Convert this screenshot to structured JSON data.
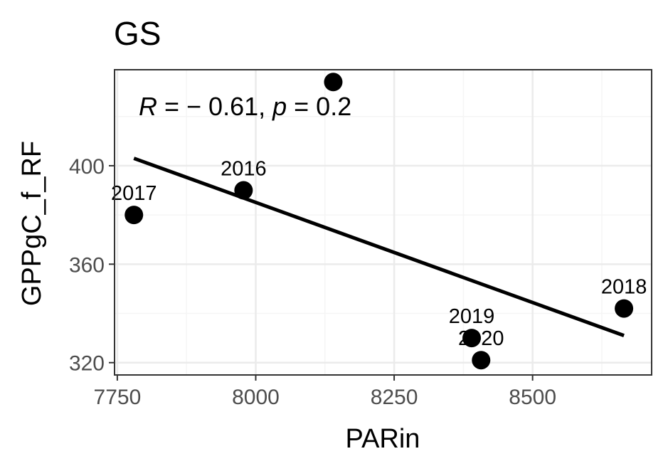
{
  "chart_data": {
    "type": "scatter",
    "title": "GS",
    "xlabel": "PARin",
    "ylabel": "GPPgC_f_RF",
    "xlim": [
      7745,
      8715
    ],
    "ylim": [
      315,
      439
    ],
    "x_ticks": [
      7750,
      8000,
      8250,
      8500
    ],
    "x_tick_labels": [
      "7750",
      "8000",
      "8250",
      "8500"
    ],
    "y_ticks": [
      320,
      360,
      400
    ],
    "y_tick_labels": [
      "320",
      "360",
      "400"
    ],
    "grid": true,
    "points": [
      {
        "x": 7780,
        "y": 380,
        "label": "2017"
      },
      {
        "x": 7978,
        "y": 390,
        "label": "2016"
      },
      {
        "x": 8140,
        "y": 434,
        "label": ""
      },
      {
        "x": 8390,
        "y": 330,
        "label": "2019"
      },
      {
        "x": 8407,
        "y": 321,
        "label": "2020"
      },
      {
        "x": 8665,
        "y": 342,
        "label": "2018"
      }
    ],
    "fit_line": {
      "x": [
        7780,
        8665
      ],
      "y": [
        403,
        331
      ]
    },
    "annotation": {
      "r_symbol": "R",
      "r_value": " = − 0.61, ",
      "p_symbol": "p",
      "p_value": " = 0.2"
    },
    "colors": {
      "point": "#000000",
      "line": "#000000",
      "grid_major": "#ebebeb",
      "grid_minor": "#f5f5f5",
      "panel_border": "#333333"
    }
  }
}
